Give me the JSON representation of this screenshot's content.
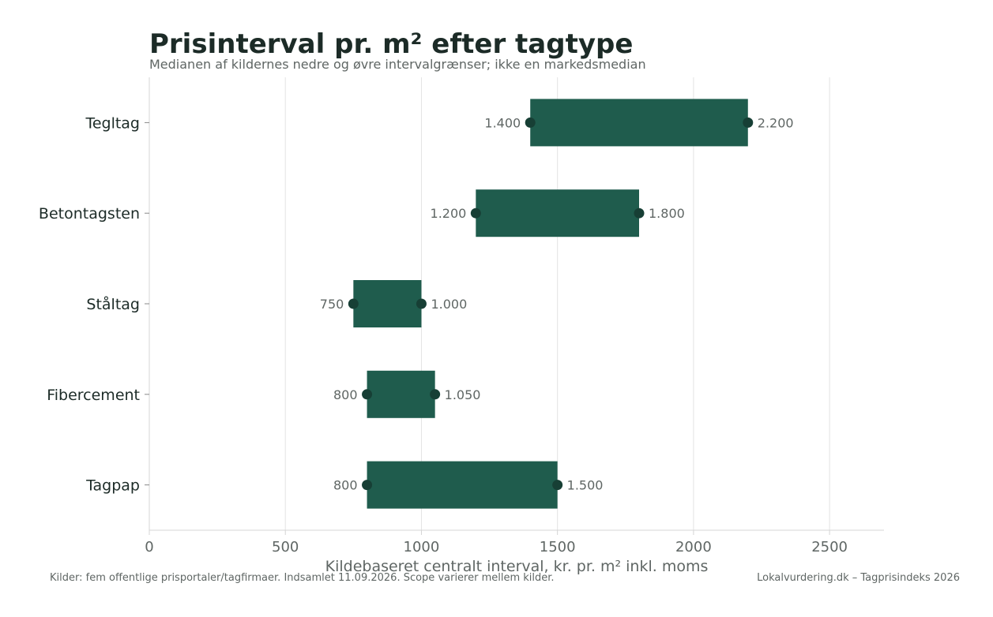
{
  "chart_data": {
    "type": "bar",
    "orientation": "horizontal-range",
    "title": "Prisinterval pr. m² efter tagtype",
    "subtitle": "Medianen af kildernes nedre og øvre intervalgrænser; ikke en markedsmedian",
    "xlabel": "Kildebaseret centralt interval, kr. pr. m² inkl. moms",
    "ylabel": "",
    "xlim": [
      0,
      2700
    ],
    "xticks": [
      0,
      500,
      1000,
      1500,
      2000,
      2500
    ],
    "xtick_labels": [
      "0",
      "500",
      "1000",
      "1500",
      "2000",
      "2500"
    ],
    "grid": "vertical",
    "categories": [
      "Tegltag",
      "Betontagsten",
      "Ståltag",
      "Fibercement",
      "Tagpap"
    ],
    "low": [
      1400,
      1200,
      750,
      800,
      800
    ],
    "high": [
      2200,
      1800,
      1000,
      1050,
      1500
    ],
    "low_labels": [
      "1.400",
      "1.200",
      "750",
      "800",
      "800"
    ],
    "high_labels": [
      "2.200",
      "1.800",
      "1.000",
      "1.050",
      "1.500"
    ],
    "colors": {
      "bar": "#1f5c4d",
      "marker": "#173f35",
      "grid": "#e3e3e3",
      "axis": "#d4d4d4"
    }
  },
  "footer": {
    "source": "Kilder: fem offentlige prisportaler/tagfirmaer. Indsamlet 11.09.2026. Scope varierer mellem kilder.",
    "brand": "Lokalvurdering.dk – Tagprisindeks 2026"
  }
}
